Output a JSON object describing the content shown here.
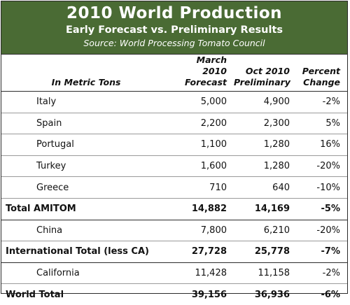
{
  "header": {
    "title": "2010 World Production",
    "subtitle": "Early Forecast vs. Preliminary Results",
    "source": "Source: World Processing Tomato Council"
  },
  "columns": {
    "label": "In Metric Tons",
    "forecast_line1": "March 2010",
    "forecast_line2": "Forecast",
    "prelim_line1": "Oct 2010",
    "prelim_line2": "Preliminary",
    "change_line1": "Percent",
    "change_line2": "Change"
  },
  "rows": [
    {
      "label": "Italy",
      "forecast": "5,000",
      "preliminary": "4,900",
      "change": "-2%"
    },
    {
      "label": "Spain",
      "forecast": "2,200",
      "preliminary": "2,300",
      "change": "5%"
    },
    {
      "label": "Portugal",
      "forecast": "1,100",
      "preliminary": "1,280",
      "change": "16%"
    },
    {
      "label": "Turkey",
      "forecast": "1,600",
      "preliminary": "1,280",
      "change": "-20%"
    },
    {
      "label": "Greece",
      "forecast": "710",
      "preliminary": "640",
      "change": "-10%"
    },
    {
      "label": "Total AMITOM",
      "forecast": "14,882",
      "preliminary": "14,169",
      "change": "-5%"
    },
    {
      "label": "China",
      "forecast": "7,800",
      "preliminary": "6,210",
      "change": "-20%"
    },
    {
      "label": "International Total (less CA)",
      "forecast": "27,728",
      "preliminary": "25,778",
      "change": "-7%"
    },
    {
      "label": "California",
      "forecast": "11,428",
      "preliminary": "11,158",
      "change": "-2%"
    },
    {
      "label": "World Total",
      "forecast": "39,156",
      "preliminary": "36,936",
      "change": "-6%"
    }
  ],
  "colors": {
    "banner": "#4a6b34",
    "banner_text": "#ffffff"
  }
}
